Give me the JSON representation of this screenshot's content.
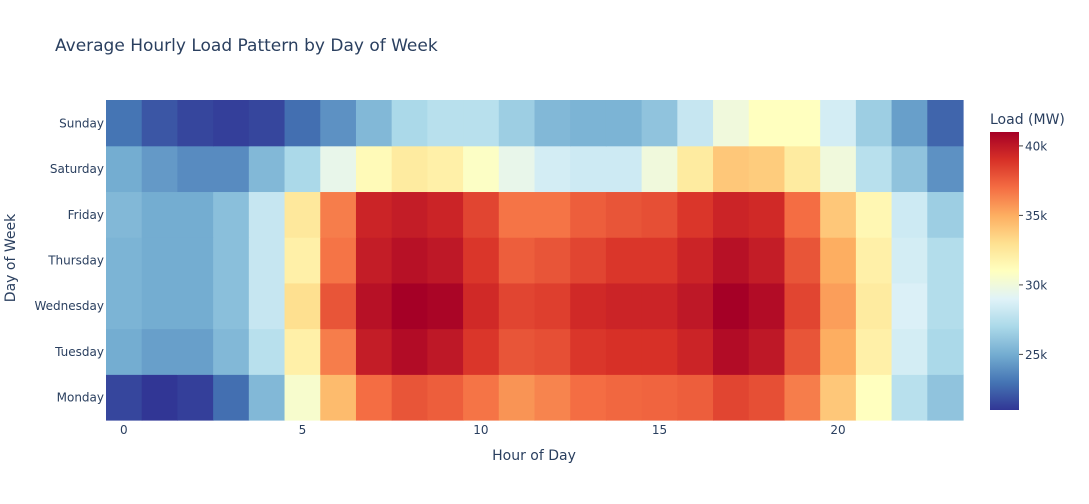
{
  "chart_data": {
    "type": "heatmap",
    "title": "Average Hourly Load Pattern by Day of Week",
    "xlabel": "Hour of Day",
    "ylabel": "Day of Week",
    "x": [
      0,
      1,
      2,
      3,
      4,
      5,
      6,
      7,
      8,
      9,
      10,
      11,
      12,
      13,
      14,
      15,
      16,
      17,
      18,
      19,
      20,
      21,
      22,
      23
    ],
    "x_ticks": [
      0,
      5,
      10,
      15,
      20
    ],
    "y": [
      "Monday",
      "Tuesday",
      "Wednesday",
      "Thursday",
      "Friday",
      "Saturday",
      "Sunday"
    ],
    "z": [
      [
        21.5,
        21.0,
        21.3,
        22.8,
        25.5,
        30.5,
        34.5,
        37.0,
        37.8,
        37.5,
        36.8,
        35.8,
        36.3,
        37.0,
        37.2,
        37.3,
        37.5,
        38.3,
        38.0,
        36.5,
        34.0,
        31.0,
        27.5,
        26.0
      ],
      [
        25.0,
        24.5,
        24.5,
        25.5,
        27.5,
        32.0,
        36.5,
        39.8,
        40.5,
        40.0,
        38.8,
        37.8,
        38.0,
        38.8,
        39.0,
        39.0,
        39.5,
        40.5,
        40.0,
        37.8,
        35.0,
        32.0,
        28.5,
        27.0
      ],
      [
        25.3,
        25.0,
        25.0,
        25.8,
        28.0,
        33.0,
        37.8,
        40.3,
        41.0,
        40.8,
        39.3,
        38.3,
        38.5,
        39.3,
        39.5,
        39.5,
        40.0,
        41.0,
        40.5,
        38.3,
        35.5,
        32.3,
        28.8,
        27.3
      ],
      [
        25.3,
        25.0,
        25.0,
        25.8,
        28.0,
        32.0,
        36.8,
        39.8,
        40.3,
        40.0,
        38.8,
        37.5,
        37.8,
        38.3,
        38.8,
        38.8,
        39.5,
        40.3,
        39.8,
        37.8,
        35.0,
        32.0,
        28.5,
        27.3
      ],
      [
        25.5,
        25.0,
        25.0,
        25.8,
        28.0,
        32.5,
        36.5,
        39.5,
        39.8,
        39.5,
        38.3,
        36.8,
        36.8,
        37.5,
        37.8,
        38.0,
        38.8,
        39.5,
        39.3,
        37.0,
        34.0,
        31.5,
        28.3,
        26.5
      ],
      [
        25.0,
        24.3,
        23.8,
        23.8,
        25.5,
        27.0,
        29.5,
        31.3,
        32.3,
        32.0,
        30.8,
        29.5,
        28.5,
        28.3,
        28.3,
        30.0,
        32.3,
        34.0,
        33.8,
        32.3,
        30.0,
        27.5,
        26.0,
        24.0
      ],
      [
        23.0,
        22.0,
        21.5,
        21.3,
        21.5,
        22.8,
        24.0,
        25.5,
        27.0,
        27.5,
        27.5,
        26.5,
        25.5,
        25.3,
        25.3,
        26.0,
        28.0,
        30.0,
        31.0,
        31.0,
        28.5,
        26.5,
        24.5,
        22.5
      ]
    ],
    "zmin": 21.0,
    "zmax": 41.0,
    "colorscale": [
      "#313695",
      "#4575b4",
      "#74add1",
      "#abd9e9",
      "#e0f3f8",
      "#ffffbf",
      "#fee090",
      "#fdae61",
      "#f46d43",
      "#d73027",
      "#a50026"
    ],
    "colorbar": {
      "title": "Load (MW)",
      "ticks": [
        25,
        30,
        35,
        40
      ],
      "tick_labels": [
        "25k",
        "30k",
        "35k",
        "40k"
      ]
    }
  }
}
